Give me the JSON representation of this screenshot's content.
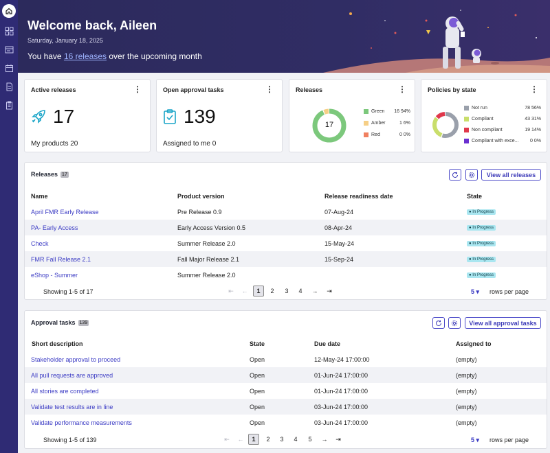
{
  "header": {
    "title": "Welcome back, Aileen",
    "date": "Saturday, January 18, 2025",
    "subtitle_pre": "You have",
    "subtitle_link": "16 releases",
    "subtitle_post": "over the upcoming month"
  },
  "sidebar": {
    "items": [
      {
        "icon": "home-icon"
      },
      {
        "icon": "grid-icon"
      },
      {
        "icon": "releases-icon"
      },
      {
        "icon": "calendar-icon"
      },
      {
        "icon": "document-icon"
      },
      {
        "icon": "clipboard-icon"
      }
    ]
  },
  "cards": {
    "active_releases": {
      "title": "Active releases",
      "value": "17",
      "sub": "My products 20"
    },
    "approval_tasks": {
      "title": "Open approval tasks",
      "value": "139",
      "sub": "Assigned to me 0"
    },
    "releases": {
      "title": "Releases",
      "center": "17",
      "legend": [
        {
          "label": "Green",
          "value": "16 94%",
          "color": "#7cc87c",
          "count": 16
        },
        {
          "label": "Amber",
          "value": "1 6%",
          "color": "#f6cf86",
          "count": 1
        },
        {
          "label": "Red",
          "value": "0 0%",
          "color": "#f08060",
          "count": 0
        }
      ]
    },
    "policies": {
      "title": "Policies by state",
      "legend": [
        {
          "label": "Not run",
          "value": "78 56%",
          "color": "#9aa0ab",
          "count": 78
        },
        {
          "label": "Compliant",
          "value": "43 31%",
          "color": "#c9de6b",
          "count": 43
        },
        {
          "label": "Non compliant",
          "value": "19 14%",
          "color": "#e0384b",
          "count": 19
        },
        {
          "label": "Compliant with exce...",
          "value": "0 0%",
          "color": "#6a2fd0",
          "count": 0
        }
      ]
    }
  },
  "releases_table": {
    "title": "Releases",
    "count": "17",
    "view_all": "View all releases",
    "columns": [
      "Name",
      "Product version",
      "Release readiness date",
      "State"
    ],
    "rows": [
      [
        "April FMR Early Release",
        "Pre Release 0.9",
        "07-Aug-24",
        "In Progress"
      ],
      [
        "PA- Early Access",
        "Early Access Version 0.5",
        "08-Apr-24",
        "In Progress"
      ],
      [
        "Check",
        "Summer Release 2.0",
        "15-May-24",
        "In Progress"
      ],
      [
        "FMR Fall Release 2.1",
        "Fall Major Release 2.1",
        "15-Sep-24",
        "In Progress"
      ],
      [
        "eShop - Summer",
        "Summer Release 2.0",
        "",
        "In Progress"
      ]
    ],
    "showing": "Showing 1-5 of 17",
    "pages": [
      "1",
      "2",
      "3",
      "4"
    ],
    "rows_per_page": "5",
    "rows_per_page_label": "rows per page"
  },
  "approval_table": {
    "title": "Approval tasks",
    "count": "139",
    "view_all": "View all approval tasks",
    "columns": [
      "Short description",
      "State",
      "Due date",
      "Assigned to"
    ],
    "rows": [
      [
        "Stakeholder approval to proceed",
        "Open",
        "12-May-24 17:00:00",
        "(empty)"
      ],
      [
        "All pull requests are approved",
        "Open",
        "01-Jun-24 17:00:00",
        "(empty)"
      ],
      [
        "All stories are completed",
        "Open",
        "01-Jun-24 17:00:00",
        "(empty)"
      ],
      [
        "Validate test results are in line",
        "Open",
        "03-Jun-24 17:00:00",
        "(empty)"
      ],
      [
        "Validate performance measurements",
        "Open",
        "03-Jun-24 17:00:00",
        "(empty)"
      ]
    ],
    "showing": "Showing 1-5 of 139",
    "pages": [
      "1",
      "2",
      "3",
      "4",
      "5"
    ],
    "rows_per_page": "5",
    "rows_per_page_label": "rows per page"
  },
  "colors": {
    "accent": "#3b3bc4",
    "sidebar": "#2f2b74",
    "header": "#2c2a5c"
  }
}
